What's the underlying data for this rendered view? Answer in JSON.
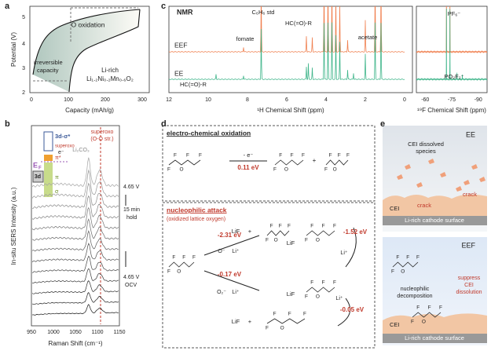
{
  "panel_labels": [
    "a",
    "b",
    "c",
    "d",
    "e"
  ],
  "panel_a": {
    "y_label": "Potential (V)",
    "x_label": "Capacity (mAh/g)",
    "x_ticks": [
      "0",
      "100",
      "200",
      "300"
    ],
    "y_ticks": [
      "2",
      "3",
      "4",
      "5"
    ],
    "o_oxidation": "O oxidation",
    "irreversible": [
      "irreversible",
      "capacity"
    ],
    "material": [
      "Li-rich",
      "Li₁.₂Ni₀.₂Mn₀.₆O₂"
    ]
  },
  "panel_b": {
    "y_label": "In-situ SERS Intensity (a.u.)",
    "x_label": "Raman Shift (cm⁻¹)",
    "x_ticks": [
      "950",
      "1000",
      "1050",
      "1100",
      "1150"
    ],
    "li2co3": "Li₂CO₃",
    "superoxo": [
      "superoxo",
      "(O-O str.)"
    ],
    "top_voltage": "4.65 V",
    "hold": [
      "15 min",
      "hold"
    ],
    "bottom_voltage": [
      "4.65 V",
      "OCV"
    ],
    "inset": {
      "sigma_star": "3d-σ*",
      "superoxo": "superoxo",
      "electron": "e⁻",
      "pi_star": "π*",
      "fermi": "E",
      "fermi_sub": "F",
      "pi": "π",
      "sigma": "σ",
      "d": "3d"
    }
  },
  "panel_c": {
    "title": "NMR",
    "h_ticks": [
      "12",
      "10",
      "8",
      "6",
      "4",
      "2",
      "0"
    ],
    "f_ticks": [
      "-60",
      "-75",
      "-90"
    ],
    "benzene": "C₆H₆ std",
    "formyl_left": "HC(=O)-R",
    "fomate": "fomate",
    "formyl_top": "HC(=O)-R",
    "acetate": "acetate",
    "eef": "EEF",
    "ee": "EE",
    "pf6": "PF₆⁻",
    "po2f2": "PO₂F₂⁻",
    "h_label": "¹H Chemical Shift (ppm)",
    "f_label": "¹⁹F Chemical Shift (ppm)"
  },
  "panel_d": {
    "oxidation_title": "electro-chemical oxidation",
    "minus_e": "- e⁻",
    "ox_energy": "0.11 eV",
    "attack_title": "nucleophilic attack",
    "attack_sub": "(oxidized lattice oxygen)",
    "lif": "LiF",
    "plus": "+",
    "e1": "-1.52 eV",
    "e2": "-2.31 eV",
    "e3": "-0.17 eV",
    "e4": "-0.05 eV",
    "o_minus": "O⁻",
    "o2_minus": "O₂⁻",
    "li_plus": "Li⁺",
    "atom_f": "F",
    "atom_o": "O"
  },
  "panel_e": {
    "ee": "EE",
    "dissolved": [
      "CEI dissolved",
      "species"
    ],
    "crack": "crack",
    "cei": "CEI",
    "surface": "Li-rich cathode surface",
    "eef": "EEF",
    "nucleophilic": [
      "nucleophilic",
      "decomposition"
    ],
    "suppress": [
      "suppress",
      "CEI",
      "dissolution"
    ]
  }
}
